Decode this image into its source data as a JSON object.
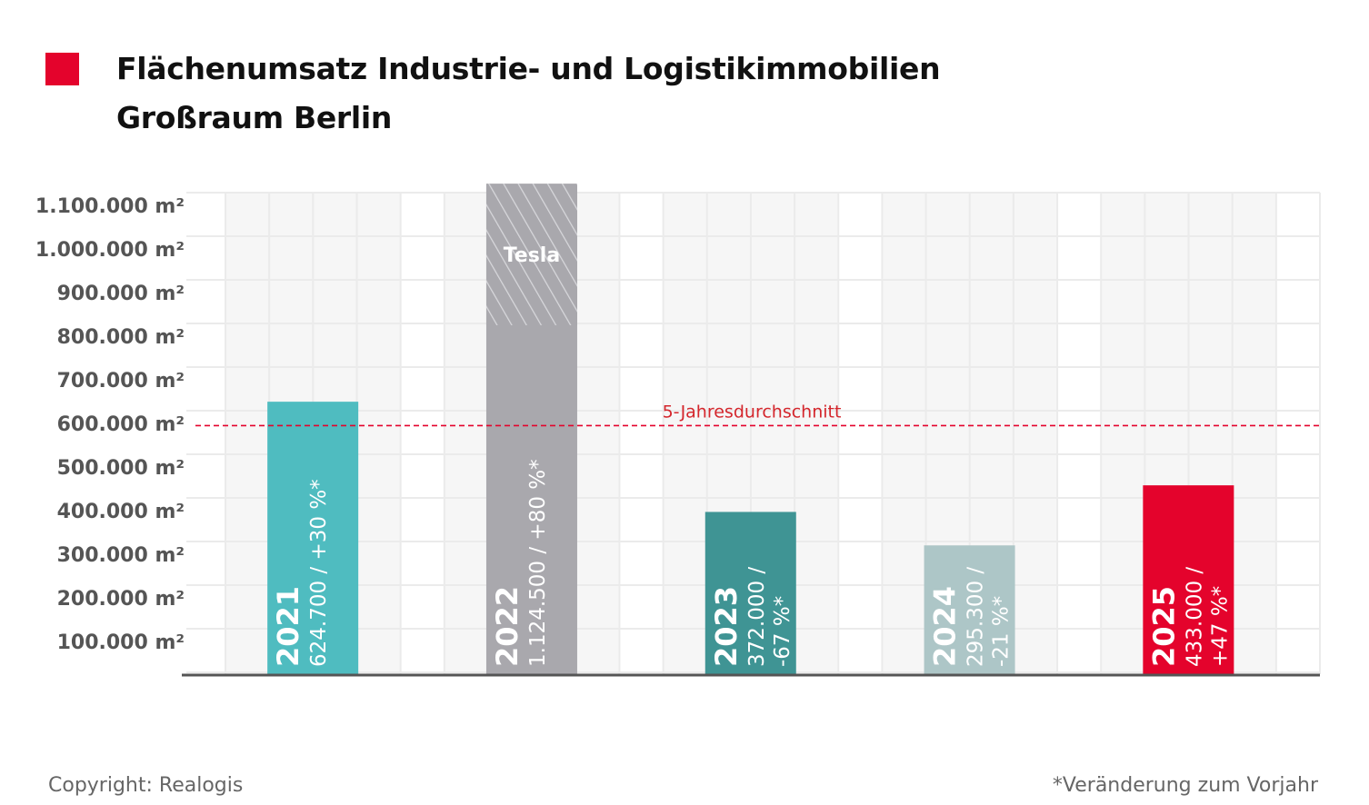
{
  "header": {
    "title_line1": "Flächenumsatz Industrie- und Logistikimmobilien",
    "title_line2": "Großraum Berlin",
    "marker_color": "#E4032C"
  },
  "footer": {
    "copyright": "Copyright: Realogis",
    "note": "*Veränderung zum Vorjahr"
  },
  "chart_data": {
    "type": "bar",
    "title": "Flächenumsatz Industrie- und Logistikimmobilien Großraum Berlin",
    "categories": [
      "2021",
      "2022",
      "2023",
      "2024",
      "2025"
    ],
    "values": [
      624700,
      1124500,
      372000,
      295300,
      433000
    ],
    "bar_labels": [
      {
        "year": "2021",
        "lines": [
          "624.700 / +30 %*"
        ]
      },
      {
        "year": "2022",
        "lines": [
          "1.124.500 / +80 %*"
        ]
      },
      {
        "year": "2023",
        "lines": [
          "372.000 /",
          "-67 %*"
        ]
      },
      {
        "year": "2024",
        "lines": [
          "295.300 /",
          "-21 %*"
        ]
      },
      {
        "year": "2025",
        "lines": [
          "433.000 /",
          "+47 %*"
        ]
      }
    ],
    "colors": [
      "#4FBCC0",
      "#A9A8AD",
      "#3F9494",
      "#ADC6C7",
      "#E4032C"
    ],
    "segment": {
      "category": "2022",
      "label": "Tesla",
      "from": 800000,
      "to": 1124500,
      "pattern": "hatched"
    },
    "reference_line": {
      "label": "5-Jahresdurchschnitt",
      "value": 570000,
      "color": "#E4032C",
      "style": "dashed"
    },
    "yticks": [
      100000,
      200000,
      300000,
      400000,
      500000,
      600000,
      700000,
      800000,
      900000,
      1000000,
      1100000
    ],
    "ytick_labels": [
      "100.000 m²",
      "200.000 m²",
      "300.000 m²",
      "400.000 m²",
      "500.000 m²",
      "600.000 m²",
      "700.000 m²",
      "800.000 m²",
      "900.000 m²",
      "1.000.000 m²",
      "1.100.000 m²"
    ],
    "ylim": [
      0,
      1100000
    ],
    "grid": true,
    "xlabel": "",
    "ylabel": ""
  }
}
